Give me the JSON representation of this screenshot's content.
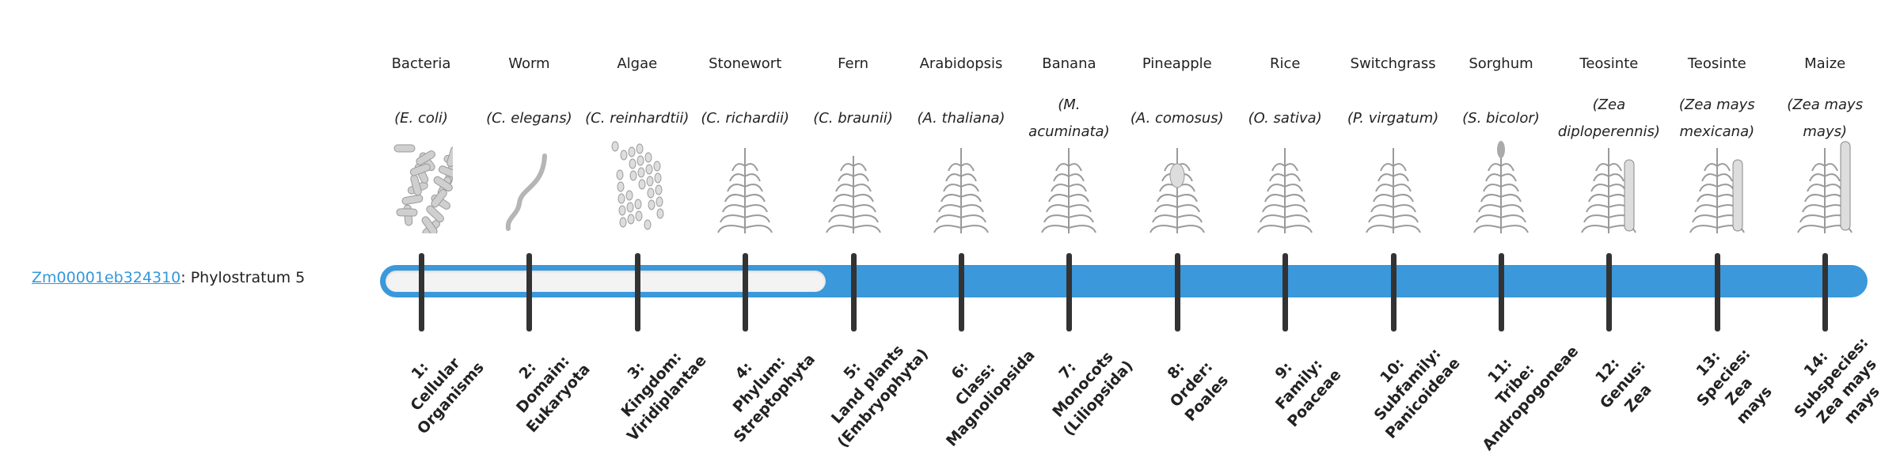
{
  "gene": {
    "id": "Zm00001eb324310",
    "suffix": ": Phylostratum 5",
    "phylostratum": 5
  },
  "colors": {
    "bar": "#3a98db",
    "link": "#3498db",
    "tick": "#333333",
    "empty": "#f3f3f3"
  },
  "columns": [
    {
      "common": "Bacteria",
      "scientific": "(E. coli)",
      "icon": "bacteria-icon",
      "stratum": "1:\nCellular\nOrganisms"
    },
    {
      "common": "Worm",
      "scientific": "(C. elegans)",
      "icon": "worm-icon",
      "stratum": "2:\nDomain:\nEukaryota"
    },
    {
      "common": "Algae",
      "scientific": "(C. reinhardtii)",
      "icon": "algae-icon",
      "stratum": "3:\nKingdom:\nViridiplantae"
    },
    {
      "common": "Stonewort",
      "scientific": "(C. richardii)",
      "icon": "stonewort-icon",
      "stratum": "4:\nPhylum:\nStreptophyta"
    },
    {
      "common": "Fern",
      "scientific": "(C. braunii)",
      "icon": "fern-icon",
      "stratum": "5:\nLand plants\n(Embryophyta)"
    },
    {
      "common": "Arabidopsis",
      "scientific": "(A. thaliana)",
      "icon": "arabidopsis-icon",
      "stratum": "6:\nClass:\nMagnoliopsida"
    },
    {
      "common": "Banana",
      "scientific": "(M. acuminata)",
      "icon": "banana-icon",
      "stratum": "7:\nMonocots\n(Liliopsida)"
    },
    {
      "common": "Pineapple",
      "scientific": "(A. comosus)",
      "icon": "pineapple-icon",
      "stratum": "8:\nOrder:\nPoales"
    },
    {
      "common": "Rice",
      "scientific": "(O. sativa)",
      "icon": "rice-icon",
      "stratum": "9:\nFamily:\nPoaceae"
    },
    {
      "common": "Switchgrass",
      "scientific": "(P. virgatum)",
      "icon": "switchgrass-icon",
      "stratum": "10:\nSubfamily:\nPanicoideae"
    },
    {
      "common": "Sorghum",
      "scientific": "(S. bicolor)",
      "icon": "sorghum-icon",
      "stratum": "11:\nTribe:\nAndropogoneae"
    },
    {
      "common": "Teosinte",
      "scientific": "(Zea diploperennis)",
      "icon": "teosinte-icon",
      "stratum": "12:\nGenus:\nZea"
    },
    {
      "common": "Teosinte",
      "scientific": "(Zea mays mexicana)",
      "icon": "teosinte-mexicana-icon",
      "stratum": "13:\nSpecies:\nZea\nmays"
    },
    {
      "common": "Maize",
      "scientific": "(Zea mays mays)",
      "icon": "maize-icon",
      "stratum": "14:\nSubspecies:\nZea mays\nmays"
    }
  ]
}
